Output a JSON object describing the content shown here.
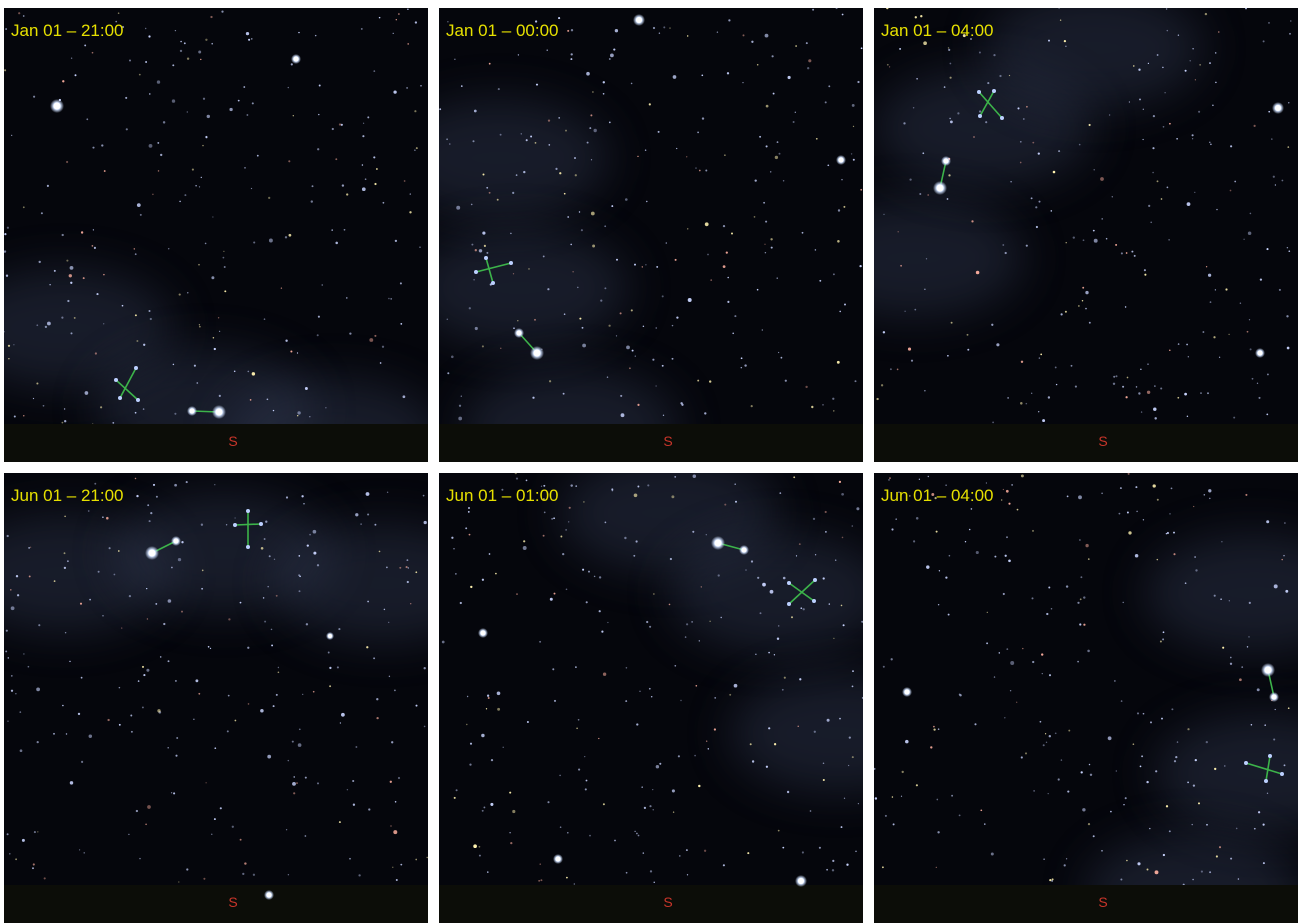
{
  "panels": [
    {
      "label": "Jan 01 – 21:00",
      "direction": "S"
    },
    {
      "label": "Jan 01 – 00:00",
      "direction": "S"
    },
    {
      "label": "Jan 01 – 04:00",
      "direction": "S"
    },
    {
      "label": "Jun 01 – 21:00",
      "direction": "S"
    },
    {
      "label": "Jun 01 – 01:00",
      "direction": "S"
    },
    {
      "label": "Jun 01 – 04:00",
      "direction": "S"
    }
  ]
}
